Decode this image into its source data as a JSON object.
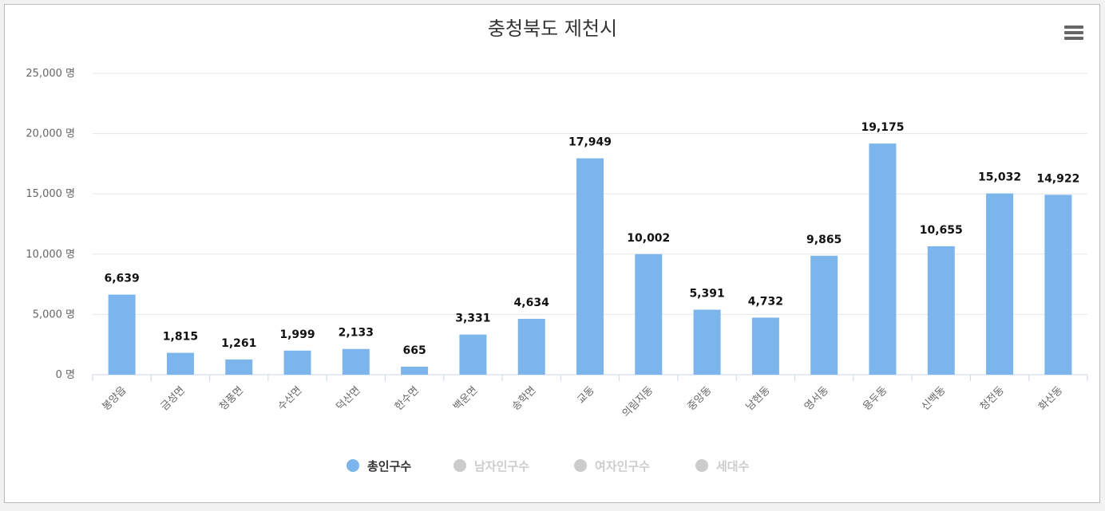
{
  "chart_data": {
    "type": "bar",
    "title": "충청북도 제천시",
    "categories": [
      "봉양읍",
      "금성면",
      "청풍면",
      "수산면",
      "덕산면",
      "한수면",
      "백운면",
      "송학면",
      "교동",
      "의림지동",
      "중앙동",
      "남현동",
      "영서동",
      "용두동",
      "신백동",
      "청전동",
      "화산동"
    ],
    "series": [
      {
        "name": "총인구수",
        "values": [
          6639,
          1815,
          1261,
          1999,
          2133,
          665,
          3331,
          4634,
          17949,
          10002,
          5391,
          4732,
          9865,
          19175,
          10655,
          15032,
          14922
        ],
        "visible": true
      }
    ],
    "data_labels": [
      "6,639",
      "1,815",
      "1,261",
      "1,999",
      "2,133",
      "665",
      "3,331",
      "4,634",
      "17,949",
      "10,002",
      "5,391",
      "4,732",
      "9,865",
      "19,175",
      "10,655",
      "15,032",
      "14,922"
    ],
    "ylim": [
      0,
      25000
    ],
    "yticks": [
      0,
      5000,
      10000,
      15000,
      20000,
      25000
    ],
    "ytick_labels": [
      "0 명",
      "5,000 명",
      "10,000 명",
      "15,000 명",
      "20,000 명",
      "25,000 명"
    ],
    "xlabel": "",
    "ylabel": "",
    "grid": true,
    "legend_position": "bottom-center",
    "legend": [
      {
        "name": "총인구수",
        "active": true
      },
      {
        "name": "남자인구수",
        "active": false
      },
      {
        "name": "여자인구수",
        "active": false
      },
      {
        "name": "세대수",
        "active": false
      }
    ]
  },
  "colors": {
    "bar": "#7cb5ec",
    "grid": "#e6e6e6",
    "axis": "#ccd6eb",
    "legend_inactive": "#cccccc",
    "legend_active_text": "#333333"
  },
  "menu_icon": "hamburger-menu-icon"
}
